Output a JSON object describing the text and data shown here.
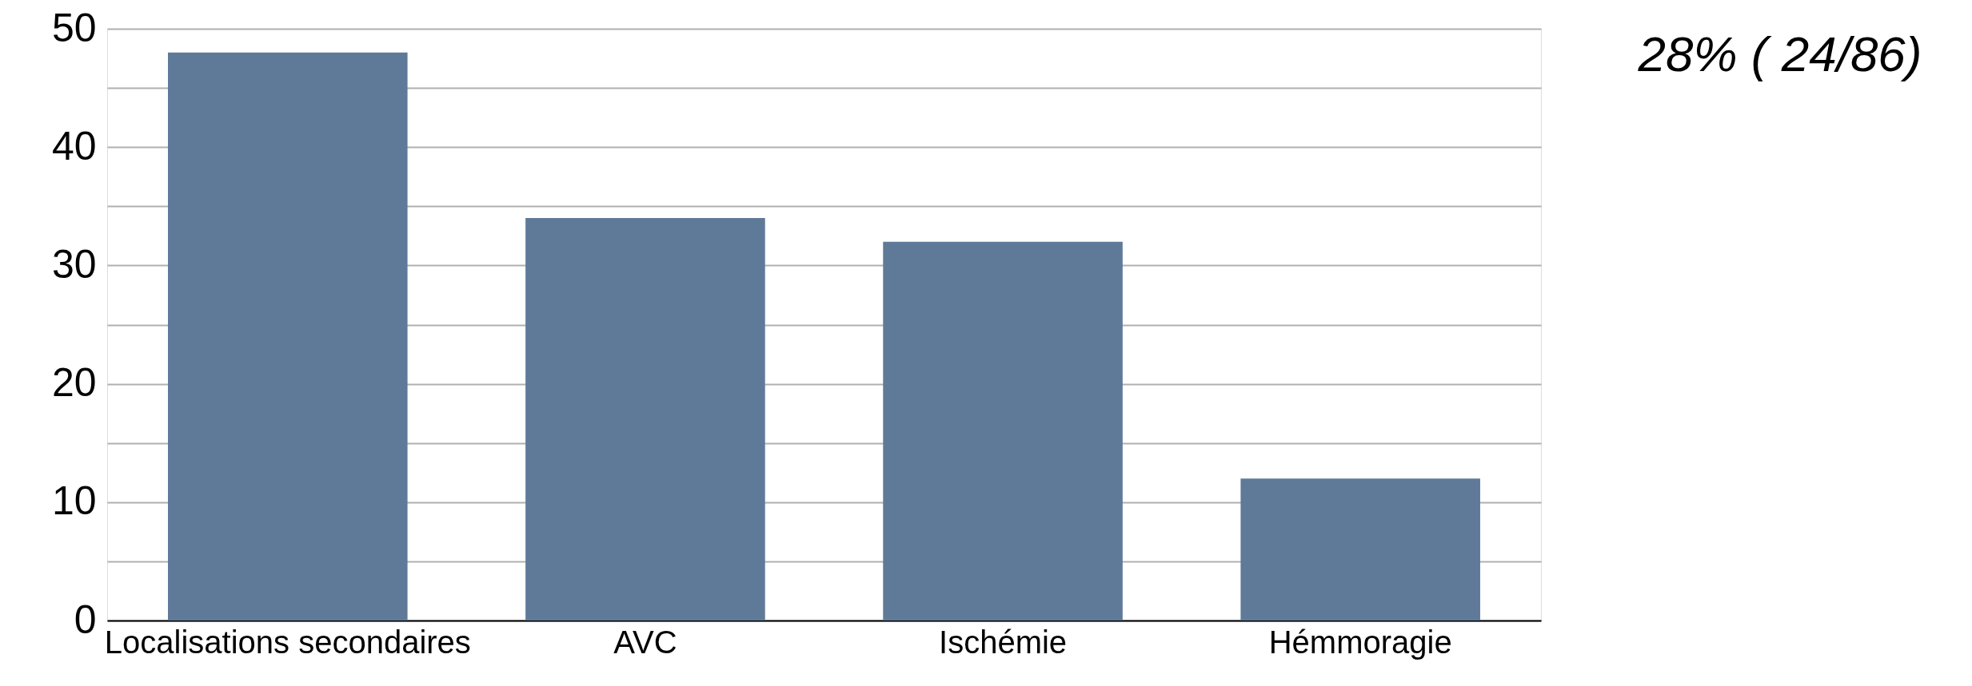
{
  "chart_data": {
    "type": "bar",
    "categories": [
      "Localisations secondaires",
      "AVC",
      "Ischémie",
      "Hémmoragie"
    ],
    "values": [
      48,
      34,
      32,
      12
    ],
    "color": "#5f7a99",
    "ylim": [
      0,
      50
    ],
    "yticks": [
      0,
      {
        "value": 5,
        "label": null
      },
      10,
      {
        "value": 15,
        "label": null
      },
      20,
      {
        "value": 25,
        "label": null
      },
      30,
      {
        "value": 35,
        "label": null
      },
      40,
      {
        "value": 45,
        "label": null
      },
      50
    ],
    "grid": "y",
    "annotations": [
      "28% ( 24/86)"
    ]
  }
}
